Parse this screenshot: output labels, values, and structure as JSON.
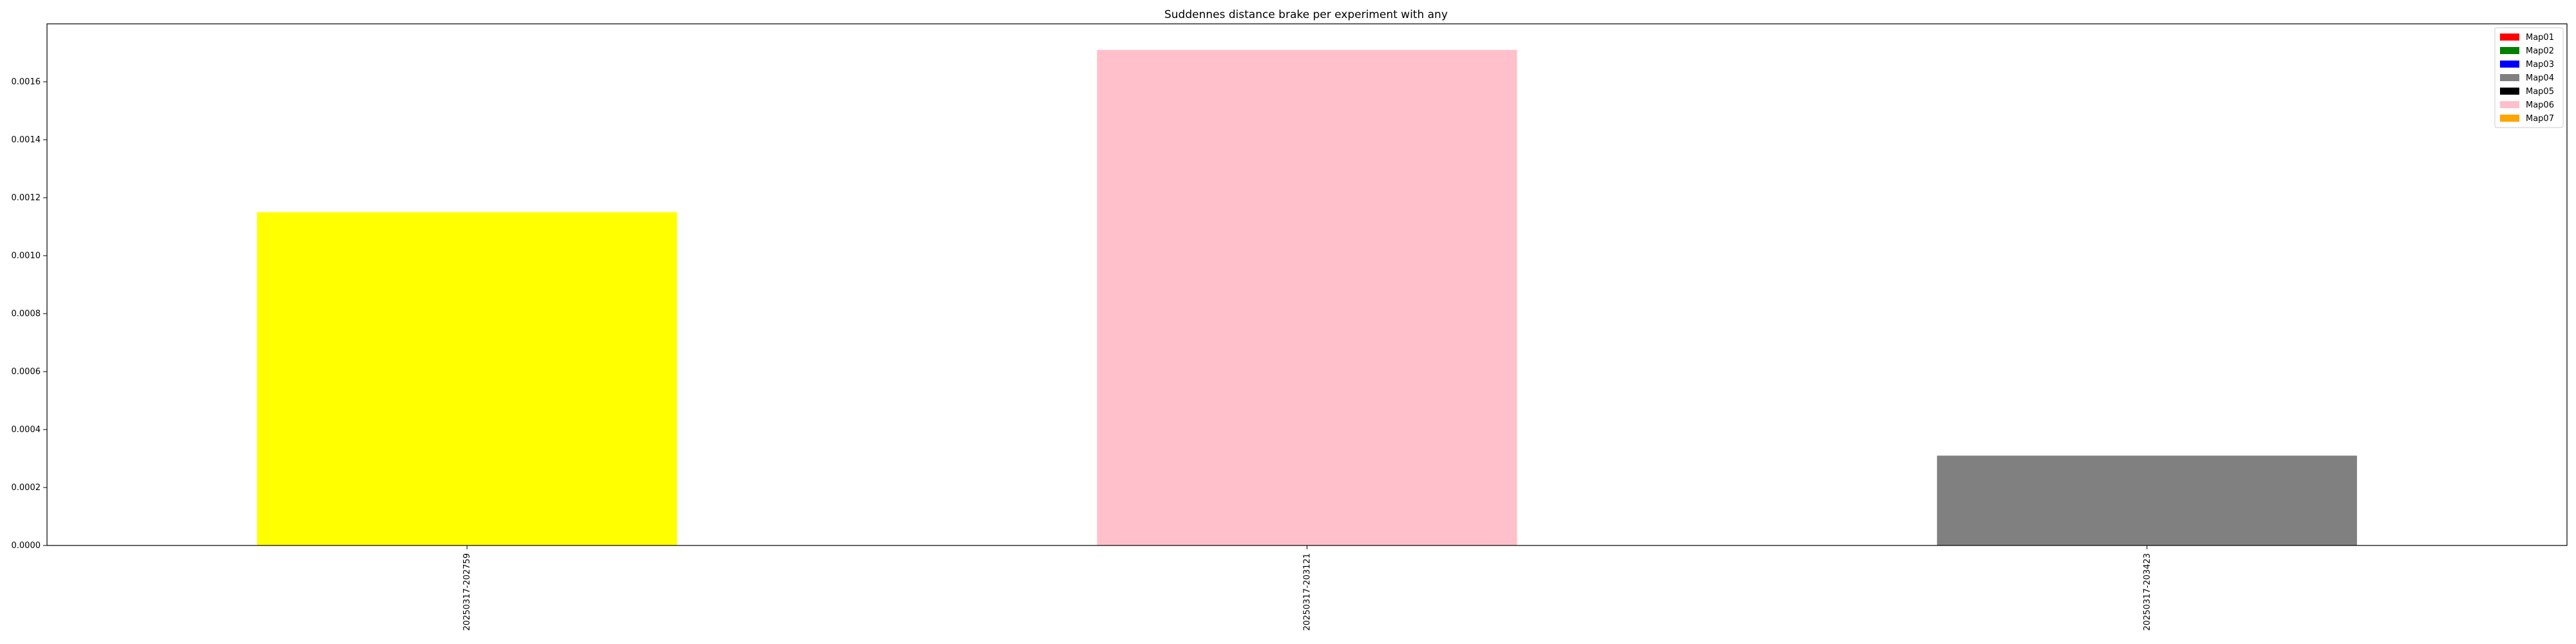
{
  "chart_data": {
    "type": "bar",
    "title": "Suddennes distance brake per experiment with any",
    "xlabel": "",
    "ylabel": "",
    "categories": [
      "20250317-202759",
      "20250317-203121",
      "20250317-203423"
    ],
    "values": [
      0.00115,
      0.00171,
      0.00031
    ],
    "bar_colors": [
      "#ffff00",
      "#ffc0cb",
      "#808080"
    ],
    "ylim": [
      0,
      0.0018
    ],
    "yticks": [
      "0.0000",
      "0.0002",
      "0.0004",
      "0.0006",
      "0.0008",
      "0.0010",
      "0.0012",
      "0.0014",
      "0.0016"
    ],
    "grid": false,
    "legend": {
      "placement": "top-right",
      "entries": [
        {
          "label": "Map01",
          "color": "#ff0000"
        },
        {
          "label": "Map02",
          "color": "#008000"
        },
        {
          "label": "Map03",
          "color": "#0000ff"
        },
        {
          "label": "Map04",
          "color": "#808080"
        },
        {
          "label": "Map05",
          "color": "#000000"
        },
        {
          "label": "Map06",
          "color": "#ffc0cb"
        },
        {
          "label": "Map07",
          "color": "#ffa500"
        }
      ]
    }
  }
}
